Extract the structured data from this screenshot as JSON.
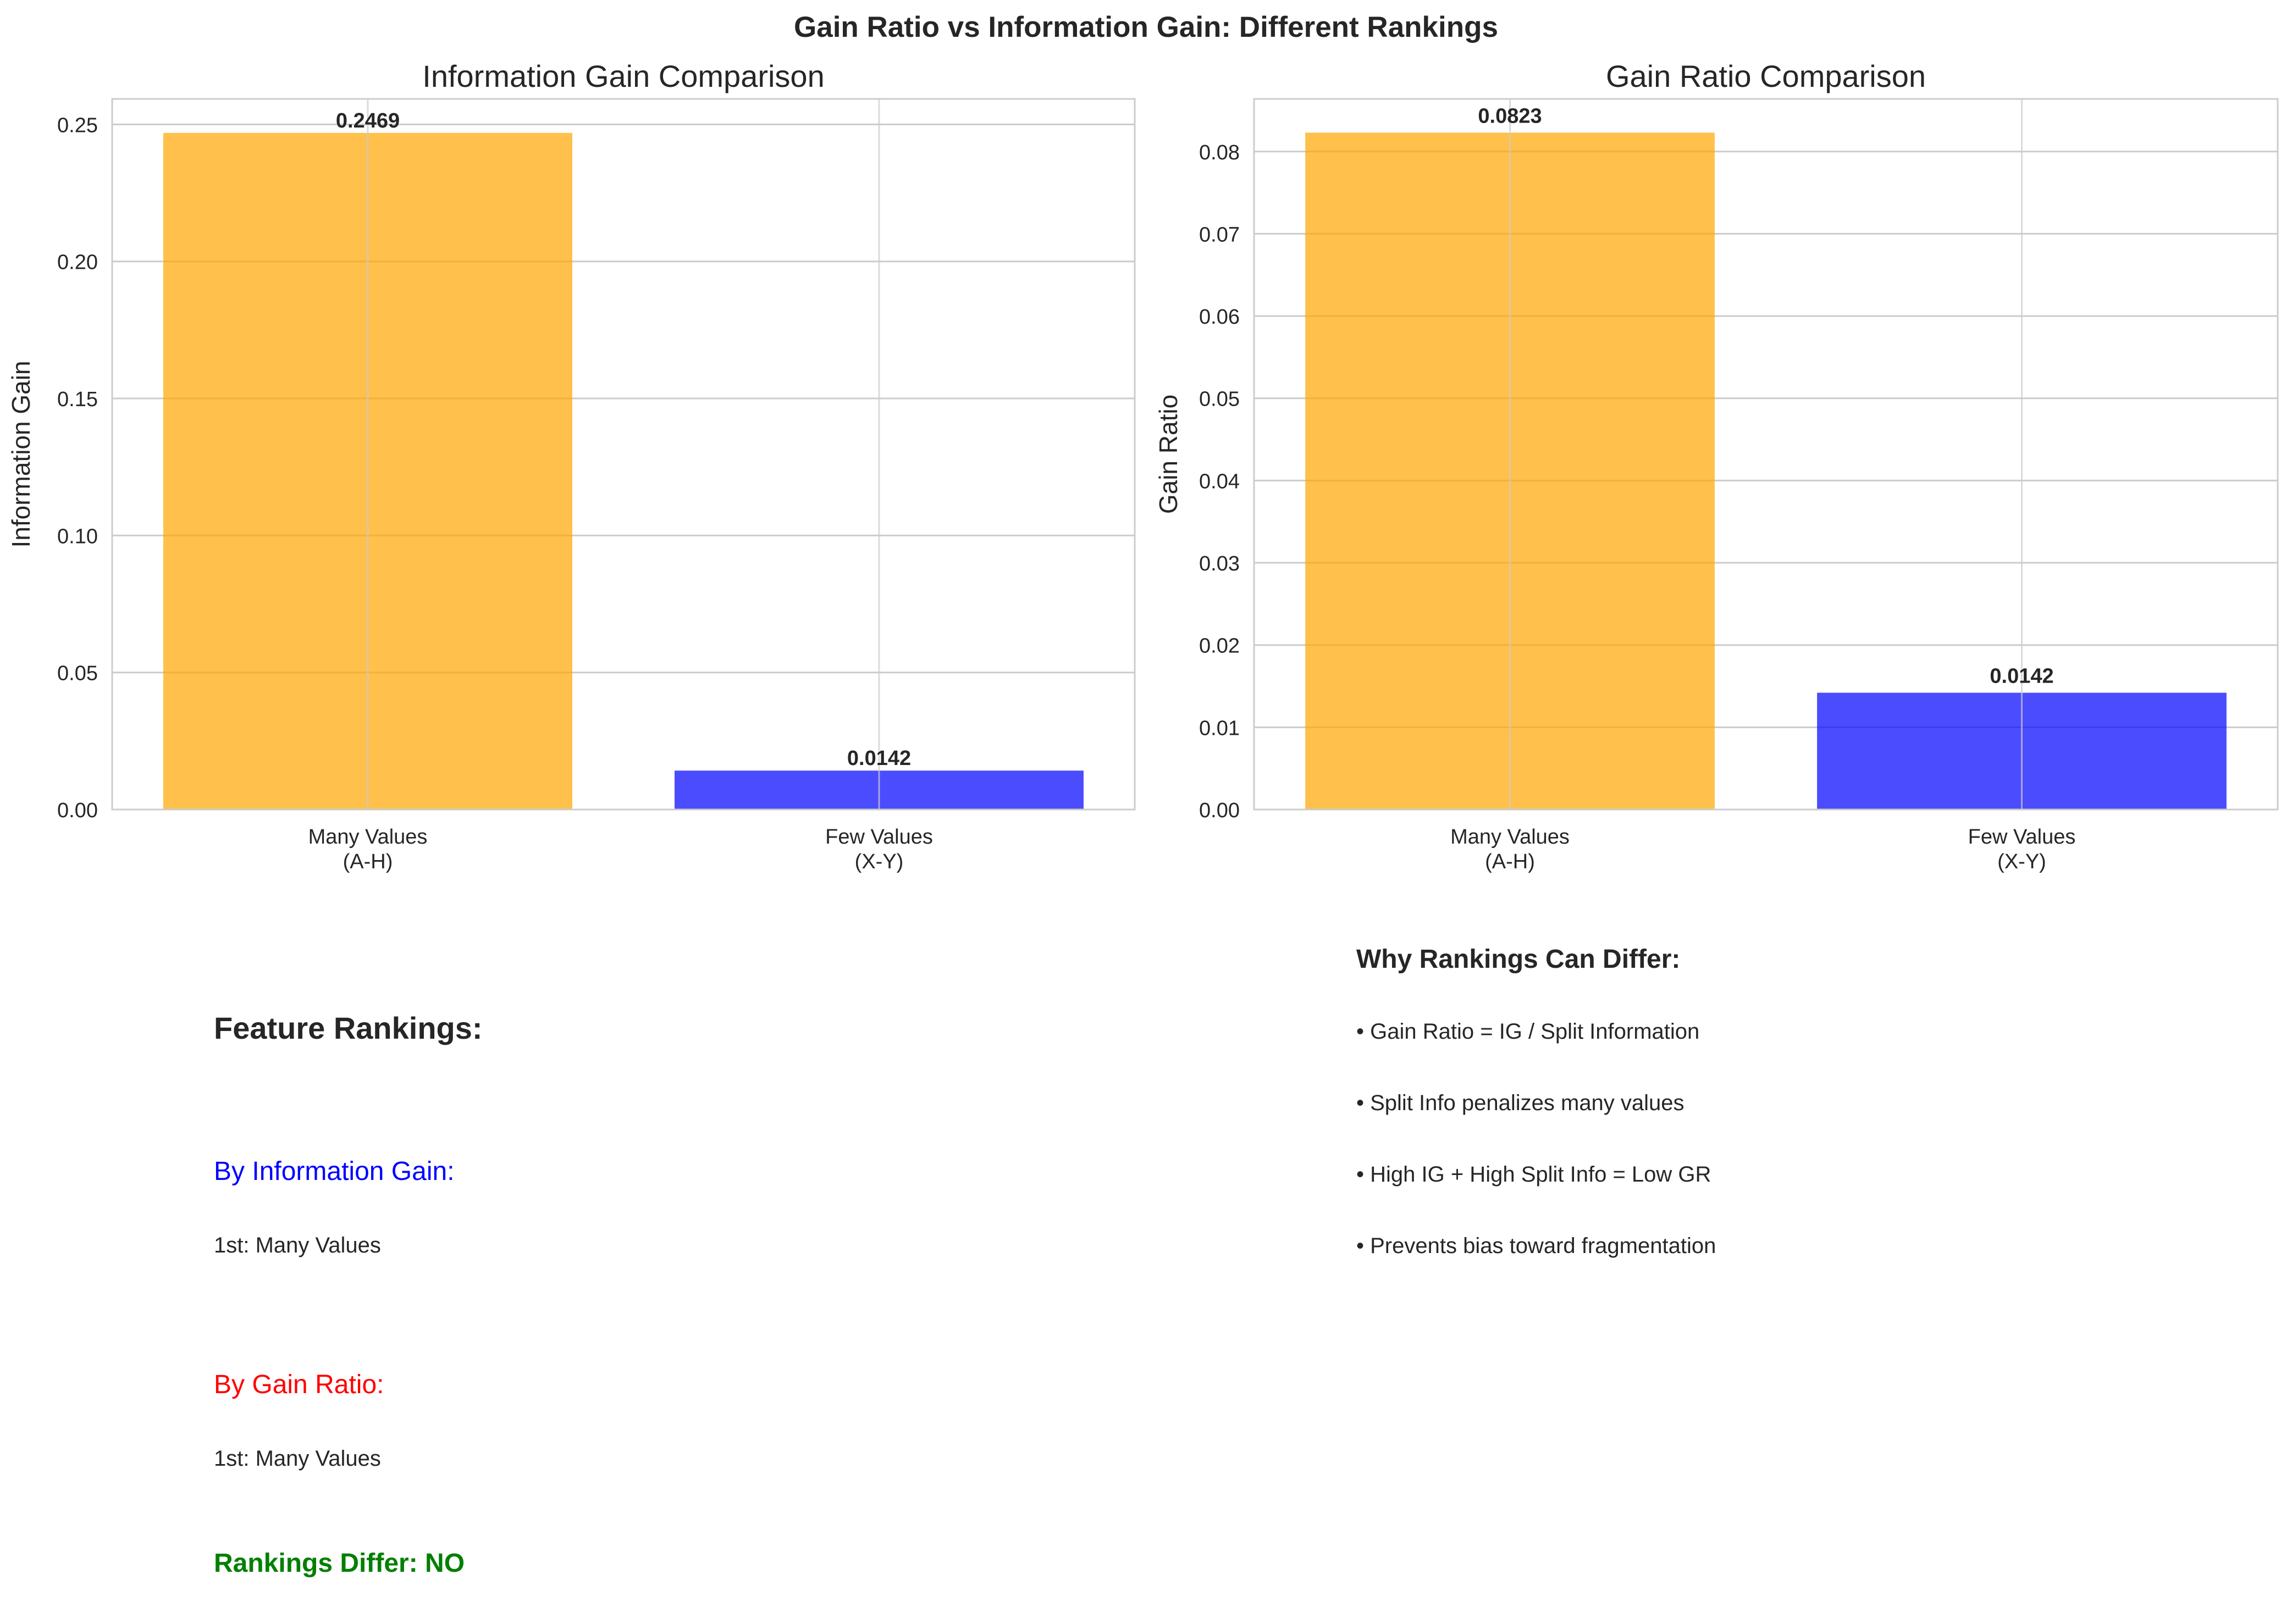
{
  "figure": {
    "suptitle": "Gain Ratio vs Information Gain: Different Rankings"
  },
  "chart_data": [
    {
      "type": "bar",
      "title": "Information Gain Comparison",
      "xlabel": "",
      "ylabel": "Information Gain",
      "categories": [
        "Many Values\n(A-H)",
        "Few Values\n(X-Y)"
      ],
      "values": [
        0.2469,
        0.0142
      ],
      "value_labels": [
        "0.2469",
        "0.0142"
      ],
      "colors": [
        "#ffa500",
        "#0000ff"
      ],
      "ylim": [
        0,
        0.2593
      ],
      "yticks": [
        0.0,
        0.05,
        0.1,
        0.15,
        0.2,
        0.25
      ],
      "ytick_labels": [
        "0.00",
        "0.05",
        "0.10",
        "0.15",
        "0.20",
        "0.25"
      ],
      "grid": true
    },
    {
      "type": "bar",
      "title": "Gain Ratio Comparison",
      "xlabel": "",
      "ylabel": "Gain Ratio",
      "categories": [
        "Many Values\n(A-H)",
        "Few Values\n(X-Y)"
      ],
      "values": [
        0.0823,
        0.0142
      ],
      "value_labels": [
        "0.0823",
        "0.0142"
      ],
      "colors": [
        "#ffa500",
        "#0000ff"
      ],
      "ylim": [
        0,
        0.0864
      ],
      "yticks": [
        0.0,
        0.01,
        0.02,
        0.03,
        0.04,
        0.05,
        0.06,
        0.07,
        0.08
      ],
      "ytick_labels": [
        "0.00",
        "0.01",
        "0.02",
        "0.03",
        "0.04",
        "0.05",
        "0.06",
        "0.07",
        "0.08"
      ],
      "grid": true
    }
  ],
  "rankings": {
    "heading": "Feature Rankings:",
    "ig_label": "By Information Gain:",
    "ig_first": "1st: Many Values",
    "gr_label": "By Gain Ratio:",
    "gr_first": "1st: Many Values",
    "differ": "Rankings Differ: NO",
    "colors": {
      "ig": "#0000ff",
      "gr": "#ff0000",
      "differ": "#008000"
    }
  },
  "explanation": {
    "heading": "Why Rankings Can Differ:",
    "bullets": [
      "• Gain Ratio = IG / Split Information",
      "• Split Info penalizes many values",
      "• High IG + High Split Info = Low GR",
      "• Prevents bias toward fragmentation"
    ]
  }
}
